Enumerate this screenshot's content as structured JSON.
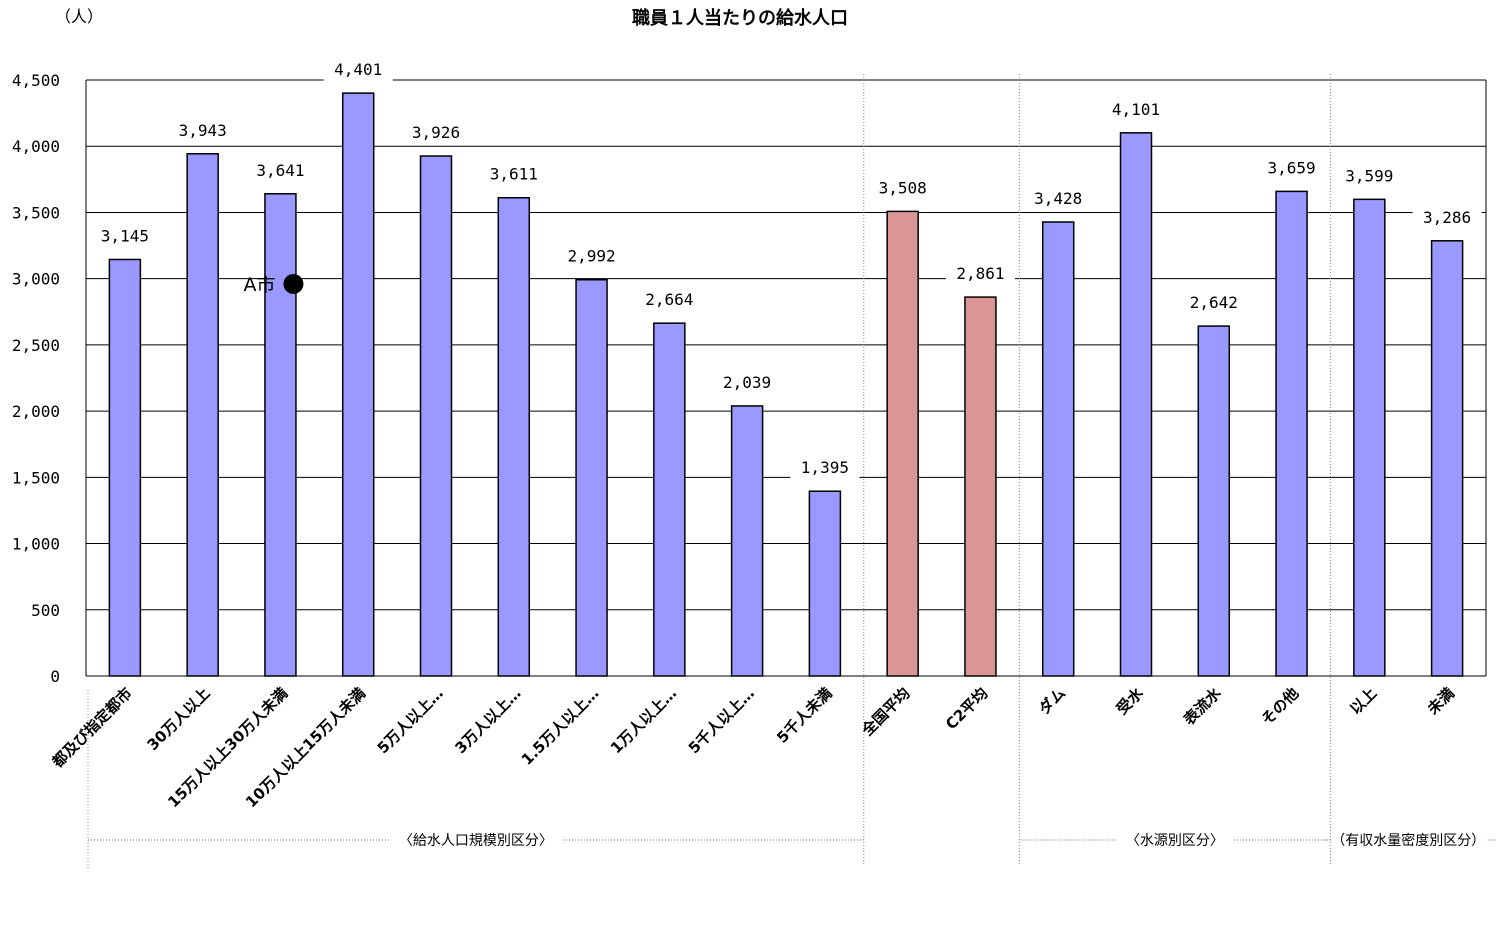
{
  "chart_data": {
    "type": "bar",
    "title": "職員１人当たりの給水人口",
    "ylabel": "（人）",
    "ylim": [
      0,
      4500
    ],
    "ytick_step": 500,
    "yticks": [
      "0",
      "500",
      "1,000",
      "1,500",
      "2,000",
      "2,500",
      "3,000",
      "3,500",
      "4,000",
      "4,500"
    ],
    "grid": true,
    "categories": [
      "都及び指定都市",
      "30万人以上",
      "15万人以上30万人未満",
      "10万人以上15万人未満",
      "5万人以上…",
      "3万人以上…",
      "1.5万人以上…",
      "1万人以上…",
      "5千人以上…",
      "5千人未満",
      "全国平均",
      "C2平均",
      "ダム",
      "受水",
      "表流水",
      "その他",
      "以上",
      "未満"
    ],
    "values": [
      3145,
      3943,
      3641,
      4401,
      3926,
      3611,
      2992,
      2664,
      2039,
      1395,
      3508,
      2861,
      3428,
      4101,
      2642,
      3659,
      3599,
      3286
    ],
    "data_labels": [
      "3,145",
      "3,943",
      "3,641",
      "4,401",
      "3,926",
      "3,611",
      "2,992",
      "2,664",
      "2,039",
      "1,395",
      "3,508",
      "2,861",
      "3,428",
      "4,101",
      "2,642",
      "3,659",
      "3,599",
      "3,286"
    ],
    "bar_colors": [
      "#9999ff",
      "#9999ff",
      "#9999ff",
      "#9999ff",
      "#9999ff",
      "#9999ff",
      "#9999ff",
      "#9999ff",
      "#9999ff",
      "#9999ff",
      "#d99694",
      "#d99694",
      "#9999ff",
      "#9999ff",
      "#9999ff",
      "#9999ff",
      "#9999ff",
      "#9999ff"
    ],
    "groups": [
      {
        "label": "〈給水人口規模別区分〉",
        "start": 0,
        "end": 9
      },
      {
        "label": "〈水源別区分〉",
        "start": 12,
        "end": 15
      },
      {
        "label": "（有収水量密度別区分）",
        "start": 16,
        "end": 17
      }
    ],
    "annotation": {
      "label": "A市",
      "category_index": 2,
      "value": 2960,
      "marker": "filled-circle"
    }
  },
  "colors": {
    "primary_bar": "#9999ff",
    "average_bar": "#d99694",
    "gridline": "#000000"
  }
}
